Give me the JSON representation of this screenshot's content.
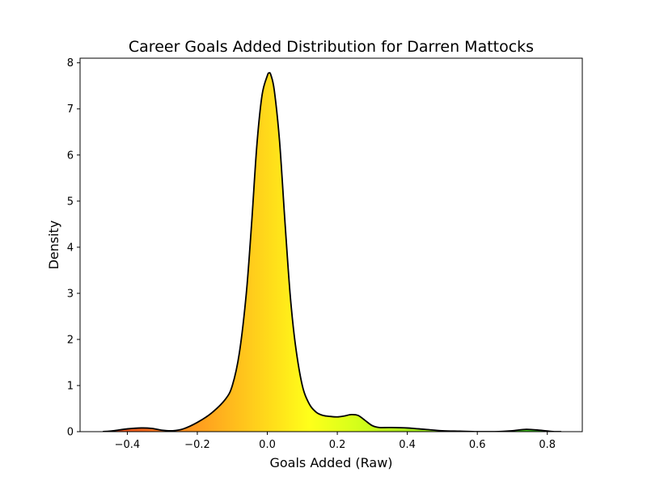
{
  "chart_data": {
    "type": "area",
    "title": "Career Goals Added Distribution for Darren Mattocks",
    "xlabel": "Goals Added (Raw)",
    "ylabel": "Density",
    "xlim": [
      -0.535,
      0.9
    ],
    "ylim": [
      0,
      8.1
    ],
    "xticks": [
      -0.4,
      -0.2,
      0.0,
      0.2,
      0.4,
      0.6,
      0.8
    ],
    "xtick_labels": [
      "−0.4",
      "−0.2",
      "0.0",
      "0.2",
      "0.4",
      "0.6",
      "0.8"
    ],
    "yticks": [
      0,
      1,
      2,
      3,
      4,
      5,
      6,
      7,
      8
    ],
    "ytick_labels": [
      "0",
      "1",
      "2",
      "3",
      "4",
      "5",
      "6",
      "7",
      "8"
    ],
    "grid": false,
    "legend": false,
    "fill": "gradient by x: red (negative) through yellow (zero) to green (positive)",
    "line_color": "#000000",
    "x": [
      -0.47,
      -0.44,
      -0.4,
      -0.36,
      -0.33,
      -0.3,
      -0.27,
      -0.24,
      -0.2,
      -0.16,
      -0.12,
      -0.1,
      -0.08,
      -0.06,
      -0.045,
      -0.03,
      -0.015,
      0.0,
      0.005,
      0.01,
      0.02,
      0.035,
      0.05,
      0.065,
      0.08,
      0.1,
      0.12,
      0.14,
      0.16,
      0.18,
      0.2,
      0.22,
      0.24,
      0.26,
      0.28,
      0.3,
      0.32,
      0.35,
      0.4,
      0.45,
      0.5,
      0.55,
      0.6,
      0.65,
      0.7,
      0.74,
      0.78,
      0.82,
      0.84
    ],
    "y": [
      0.0,
      0.02,
      0.06,
      0.08,
      0.07,
      0.03,
      0.02,
      0.06,
      0.2,
      0.4,
      0.7,
      1.0,
      1.7,
      3.0,
      4.5,
      6.2,
      7.3,
      7.72,
      7.78,
      7.74,
      7.4,
      6.3,
      4.6,
      3.0,
      1.9,
      1.0,
      0.6,
      0.42,
      0.35,
      0.33,
      0.32,
      0.34,
      0.37,
      0.35,
      0.24,
      0.13,
      0.09,
      0.09,
      0.08,
      0.05,
      0.02,
      0.01,
      0.0,
      0.0,
      0.02,
      0.05,
      0.03,
      0.0,
      0.0
    ]
  }
}
